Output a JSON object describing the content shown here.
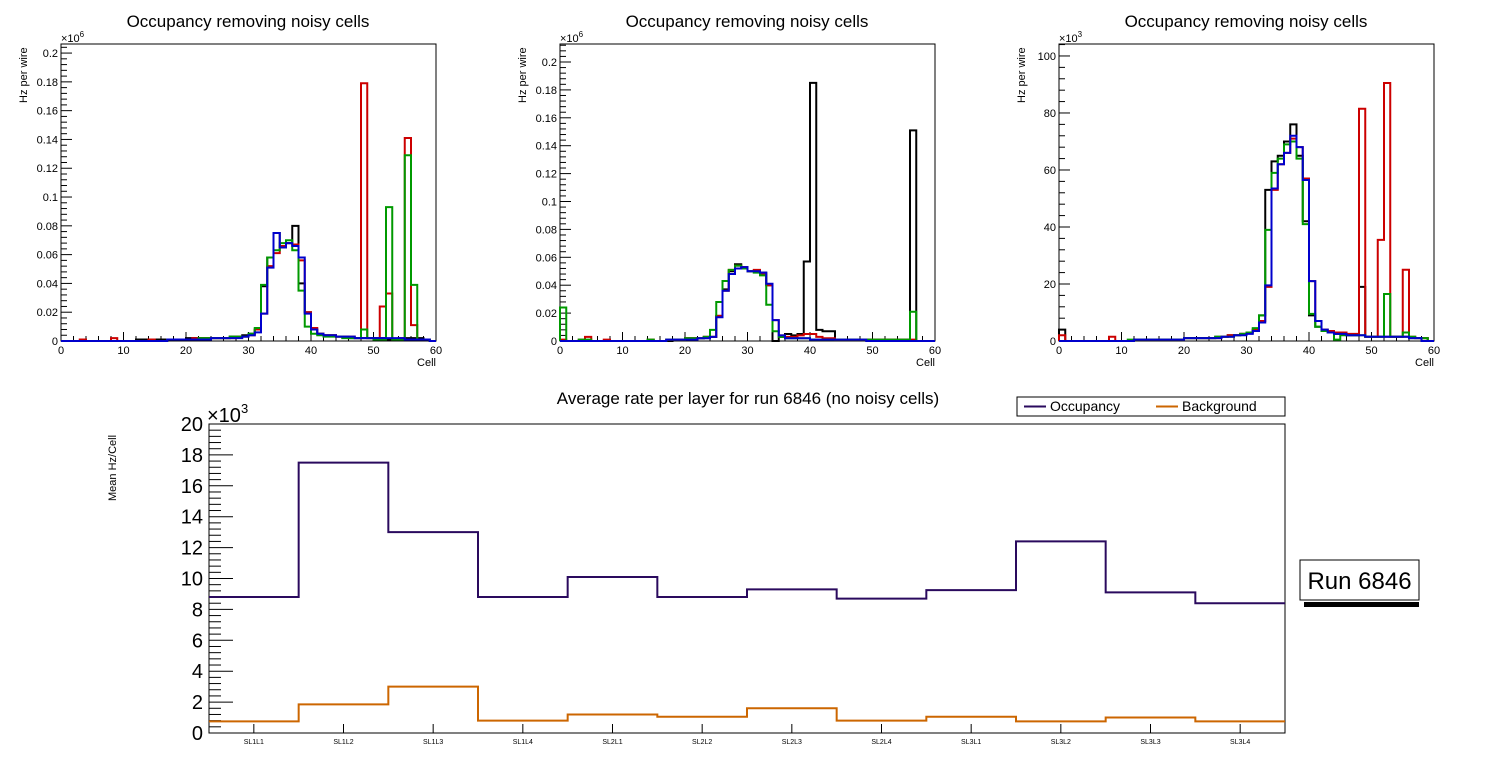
{
  "chart_data": [
    {
      "type": "step-histogram",
      "title": "Occupancy removing noisy cells",
      "xlabel": "Cell",
      "ylabel": "Hz per wire",
      "y_multiplier_label": "×10",
      "y_multiplier_exp": "6",
      "xlim": [
        0,
        60
      ],
      "ylim": [
        0,
        0.2063
      ],
      "x_ticks": [
        "0",
        "10",
        "20",
        "30",
        "40",
        "50",
        "60"
      ],
      "y_ticks": [
        "0",
        "0.02",
        "0.04",
        "0.06",
        "0.08",
        "0.1",
        "0.12",
        "0.14",
        "0.16",
        "0.18",
        "0.2"
      ],
      "y_tick_values": [
        0,
        0.02,
        0.04,
        0.06,
        0.08,
        0.1,
        0.12,
        0.14,
        0.16,
        0.18,
        0.2
      ],
      "series": [
        {
          "name": "black",
          "color": "#000000",
          "values": [
            0,
            0,
            0,
            0,
            0,
            0,
            0,
            0,
            0,
            0,
            0,
            0,
            0.001,
            0.001,
            0.001,
            0.001,
            0.001,
            0.001,
            0.001,
            0.001,
            0.002,
            0.002,
            0.002,
            0.002,
            0.002,
            0.002,
            0.002,
            0.003,
            0.003,
            0.004,
            0.005,
            0.008,
            0.038,
            0.058,
            0.075,
            0.065,
            0.068,
            0.08,
            0.04,
            0.02,
            0.008,
            0.005,
            0.004,
            0.004,
            0.003,
            0.003,
            0.002,
            0.002,
            0.002,
            0.002,
            0.002,
            0.002,
            0.001,
            0.001,
            0.001,
            0.002,
            0.002,
            0.002,
            0.001,
            0
          ]
        },
        {
          "name": "red",
          "color": "#cc0000",
          "values": [
            0,
            0,
            0,
            0.001,
            0,
            0,
            0,
            0,
            0.002,
            0,
            0,
            0,
            0,
            0,
            0.001,
            0,
            0,
            0.001,
            0.001,
            0.001,
            0.001,
            0.002,
            0.002,
            0.002,
            0.002,
            0.002,
            0.002,
            0.002,
            0.003,
            0.003,
            0.004,
            0.008,
            0.019,
            0.052,
            0.061,
            0.066,
            0.068,
            0.067,
            0.056,
            0.02,
            0.009,
            0.005,
            0.004,
            0.004,
            0.003,
            0.003,
            0.003,
            0.002,
            0.179,
            0.002,
            0.001,
            0.024,
            0.033,
            0.001,
            0.002,
            0.141,
            0.011,
            0.001,
            0.001,
            0
          ]
        },
        {
          "name": "green",
          "color": "#009900",
          "values": [
            0,
            0,
            0,
            0,
            0,
            0,
            0,
            0,
            0,
            0,
            0,
            0,
            0,
            0,
            0,
            0,
            0,
            0.001,
            0.001,
            0.001,
            0.001,
            0.001,
            0.002,
            0.002,
            0.002,
            0.002,
            0.002,
            0.003,
            0.003,
            0.003,
            0.005,
            0.009,
            0.039,
            0.058,
            0.063,
            0.068,
            0.07,
            0.063,
            0.035,
            0.01,
            0.005,
            0.004,
            0.003,
            0.003,
            0.003,
            0.002,
            0.002,
            0.002,
            0.008,
            0.002,
            0.001,
            0.001,
            0.093,
            0.001,
            0.001,
            0.129,
            0.039,
            0.001,
            0.001,
            0
          ]
        },
        {
          "name": "blue",
          "color": "#0000cc",
          "values": [
            0,
            0,
            0,
            0,
            0,
            0,
            0,
            0,
            0,
            0,
            0,
            0,
            0,
            0,
            0,
            0,
            0,
            0.001,
            0.001,
            0.001,
            0.001,
            0.001,
            0.001,
            0.001,
            0.002,
            0.002,
            0.002,
            0.002,
            0.002,
            0.003,
            0.004,
            0.006,
            0.019,
            0.051,
            0.075,
            0.065,
            0.068,
            0.066,
            0.058,
            0.019,
            0.008,
            0.005,
            0.004,
            0.004,
            0.003,
            0.003,
            0.003,
            0.002,
            0.002,
            0.002,
            0.002,
            0.002,
            0.002,
            0.002,
            0.002,
            0.001,
            0.001,
            0.001,
            0.001,
            0
          ]
        }
      ]
    },
    {
      "type": "step-histogram",
      "title": "Occupancy removing noisy cells",
      "xlabel": "Cell",
      "ylabel": "Hz per wire",
      "y_multiplier_label": "×10",
      "y_multiplier_exp": "6",
      "xlim": [
        0,
        60
      ],
      "ylim": [
        0,
        0.2129
      ],
      "x_ticks": [
        "0",
        "10",
        "20",
        "30",
        "40",
        "50",
        "60"
      ],
      "y_ticks": [
        "0",
        "0.02",
        "0.04",
        "0.06",
        "0.08",
        "0.1",
        "0.12",
        "0.14",
        "0.16",
        "0.18",
        "0.2"
      ],
      "y_tick_values": [
        0,
        0.02,
        0.04,
        0.06,
        0.08,
        0.1,
        0.12,
        0.14,
        0.16,
        0.18,
        0.2
      ],
      "series": [
        {
          "name": "black",
          "color": "#000000",
          "values": [
            0,
            0,
            0,
            0,
            0,
            0,
            0,
            0,
            0,
            0,
            0,
            0,
            0,
            0,
            0,
            0,
            0,
            0,
            0.001,
            0.001,
            0.002,
            0.002,
            0.002,
            0.003,
            0.003,
            0.018,
            0.037,
            0.05,
            0.055,
            0.053,
            0.05,
            0.05,
            0.049,
            0.04,
            0,
            0.003,
            0.005,
            0.004,
            0.005,
            0.057,
            0.185,
            0.008,
            0.007,
            0.007,
            0.001,
            0.001,
            0.001,
            0.001,
            0.001,
            0.001,
            0.001,
            0.001,
            0.001,
            0.001,
            0.001,
            0.001,
            0.151,
            0,
            0,
            0
          ]
        },
        {
          "name": "red",
          "color": "#cc0000",
          "values": [
            0.001,
            0,
            0,
            0.001,
            0.003,
            0,
            0,
            0.001,
            0,
            0,
            0,
            0,
            0,
            0,
            0.001,
            0,
            0,
            0.001,
            0.001,
            0.001,
            0.002,
            0.002,
            0.002,
            0.003,
            0.003,
            0.018,
            0.036,
            0.051,
            0.054,
            0.053,
            0.05,
            0.051,
            0.048,
            0.04,
            0.015,
            0.004,
            0.003,
            0.003,
            0.004,
            0.005,
            0.005,
            0.003,
            0.002,
            0.002,
            0.001,
            0.001,
            0.001,
            0.001,
            0.001,
            0.001,
            0.001,
            0.001,
            0.001,
            0.001,
            0.001,
            0.001,
            0.001,
            0,
            0,
            0
          ]
        },
        {
          "name": "green",
          "color": "#009900",
          "values": [
            0.024,
            0,
            0,
            0.001,
            0.001,
            0,
            0,
            0,
            0,
            0,
            0,
            0,
            0,
            0,
            0.001,
            0,
            0,
            0.001,
            0.001,
            0.001,
            0.002,
            0.002,
            0.002,
            0.003,
            0.008,
            0.028,
            0.043,
            0.051,
            0.054,
            0.052,
            0.05,
            0.049,
            0.047,
            0.026,
            0.007,
            0.003,
            0.002,
            0.002,
            0.002,
            0.002,
            0.001,
            0.001,
            0.001,
            0.001,
            0.001,
            0.001,
            0.001,
            0.001,
            0.001,
            0.001,
            0.001,
            0.001,
            0.001,
            0.001,
            0.001,
            0.001,
            0.021,
            0,
            0,
            0
          ]
        },
        {
          "name": "blue",
          "color": "#0000cc",
          "values": [
            0,
            0,
            0,
            0,
            0,
            0,
            0,
            0,
            0,
            0,
            0,
            0,
            0,
            0,
            0,
            0,
            0,
            0.001,
            0.001,
            0.001,
            0.001,
            0.001,
            0.002,
            0.002,
            0.003,
            0.017,
            0.036,
            0.048,
            0.052,
            0.053,
            0.05,
            0.05,
            0.049,
            0.041,
            0.015,
            0.004,
            0.002,
            0.002,
            0.002,
            0.002,
            0.001,
            0.001,
            0.001,
            0.001,
            0.001,
            0.001,
            0.001,
            0.001,
            0.001,
            0,
            0,
            0,
            0,
            0,
            0,
            0,
            0,
            0,
            0,
            0
          ]
        }
      ]
    },
    {
      "type": "step-histogram",
      "title": "Occupancy removing noisy cells",
      "xlabel": "Cell",
      "ylabel": "Hz per wire",
      "y_multiplier_label": "×10",
      "y_multiplier_exp": "3",
      "xlim": [
        0,
        60
      ],
      "ylim": [
        0,
        104.2
      ],
      "x_ticks": [
        "0",
        "10",
        "20",
        "30",
        "40",
        "50",
        "60"
      ],
      "y_ticks": [
        "0",
        "20",
        "40",
        "60",
        "80",
        "100"
      ],
      "y_tick_values": [
        0,
        20,
        40,
        60,
        80,
        100
      ],
      "series": [
        {
          "name": "black",
          "color": "#000000",
          "values": [
            4,
            0,
            0,
            0,
            0,
            0,
            0,
            0,
            0,
            0,
            0,
            0,
            0.5,
            0.5,
            0.5,
            0.5,
            0.5,
            0.5,
            0.5,
            0.5,
            1,
            1,
            1,
            1,
            1,
            1.5,
            1.5,
            2,
            2,
            2.5,
            3,
            4,
            9,
            53,
            63,
            65,
            70,
            76,
            65,
            42,
            9,
            5,
            3.5,
            3,
            2.5,
            2.5,
            2,
            2,
            19,
            1.5,
            1.5,
            1.5,
            1.5,
            1.5,
            1.5,
            1.5,
            1,
            1,
            1,
            0
          ]
        },
        {
          "name": "red",
          "color": "#cc0000",
          "values": [
            2,
            0,
            0,
            0,
            0,
            0,
            0,
            0,
            1.5,
            0,
            0,
            0,
            0.5,
            0.5,
            0.5,
            0.5,
            0.5,
            0.5,
            0.5,
            0.5,
            1,
            1,
            1,
            1,
            1,
            1,
            1.5,
            2,
            2,
            2.5,
            3,
            4,
            7,
            19,
            53,
            62,
            66,
            71,
            68,
            57,
            21,
            7,
            4,
            3.5,
            3,
            3,
            2.5,
            2.5,
            81.5,
            1.5,
            1.5,
            35.5,
            90.5,
            1.5,
            1.5,
            25,
            1.5,
            1,
            1,
            0
          ]
        },
        {
          "name": "green",
          "color": "#009900",
          "values": [
            0,
            0,
            0,
            0,
            0,
            0,
            0,
            0,
            0,
            0,
            0,
            0.5,
            0.5,
            0.5,
            0.5,
            0.5,
            0.5,
            0.5,
            0.5,
            0.5,
            1,
            1,
            1,
            1,
            1,
            1.5,
            1.5,
            1.5,
            2,
            2.5,
            3,
            4.5,
            9,
            39,
            59,
            64,
            69,
            70,
            64,
            41,
            9.5,
            5,
            3.5,
            3,
            0.5,
            2,
            2,
            2,
            2,
            1.5,
            1.5,
            1.5,
            16.5,
            1.5,
            1.5,
            3,
            1.5,
            1,
            1,
            0
          ]
        },
        {
          "name": "blue",
          "color": "#0000cc",
          "values": [
            0,
            0,
            0,
            0,
            0,
            0,
            0,
            0,
            0,
            0,
            0,
            0,
            0.5,
            0.5,
            0.5,
            0.5,
            0.5,
            0.5,
            0.5,
            0.5,
            1,
            1,
            1,
            1,
            1,
            1,
            1.5,
            1.5,
            2,
            2,
            2.5,
            3.5,
            6.5,
            19.5,
            53.5,
            62,
            66,
            72,
            68,
            56.5,
            21,
            7,
            4,
            3,
            2.5,
            2.5,
            2,
            2,
            2,
            1.5,
            1.5,
            1.5,
            1.5,
            1.5,
            1.5,
            1.5,
            1,
            1,
            0,
            0
          ]
        }
      ]
    },
    {
      "type": "step-histogram",
      "title": "Average rate per layer for run 6846 (no noisy cells)",
      "xlabel": "",
      "ylabel": "Mean Hz/Cell",
      "y_multiplier_label": "×10",
      "y_multiplier_exp": "3",
      "ylim": [
        0,
        20
      ],
      "categories": [
        "SL1L1",
        "SL1L2",
        "SL1L3",
        "SL1L4",
        "SL2L1",
        "SL2L2",
        "SL2L3",
        "SL2L4",
        "SL3L1",
        "SL3L2",
        "SL3L3",
        "SL3L4"
      ],
      "y_ticks": [
        "0",
        "2",
        "4",
        "6",
        "8",
        "10",
        "12",
        "14",
        "16",
        "18",
        "20"
      ],
      "y_tick_values": [
        0,
        2,
        4,
        6,
        8,
        10,
        12,
        14,
        16,
        18,
        20
      ],
      "legend_position": "top-right",
      "series": [
        {
          "name": "Occupancy",
          "color": "#2a0a5e",
          "values": [
            8.8,
            17.5,
            13.0,
            8.8,
            10.1,
            8.8,
            9.3,
            8.7,
            9.25,
            12.4,
            9.1,
            8.4
          ]
        },
        {
          "name": "Background",
          "color": "#cc6600",
          "values": [
            0.75,
            1.85,
            3.0,
            0.8,
            1.2,
            1.05,
            1.6,
            0.8,
            1.05,
            0.75,
            1.0,
            0.75
          ]
        }
      ]
    }
  ],
  "run_label": "Run 6846"
}
